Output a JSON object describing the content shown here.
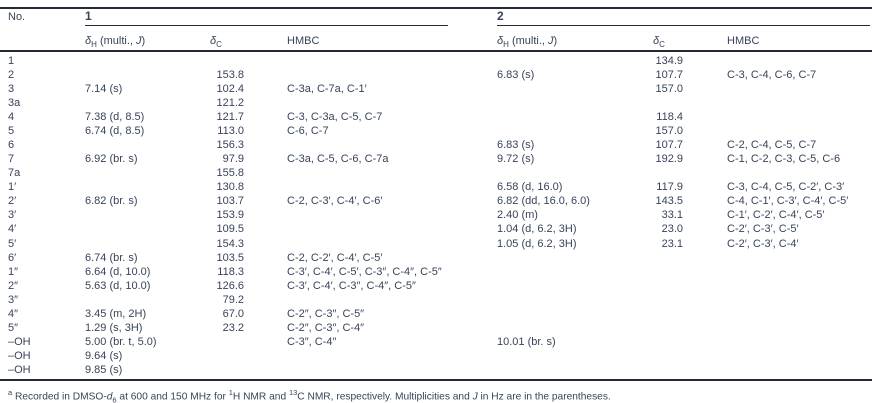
{
  "header": {
    "no_label": "No.",
    "compound1_label": "1",
    "compound2_label": "2",
    "sub": {
      "delta": "δ",
      "h_sub": "H",
      "h_rest": " (multi., ",
      "j_italic": "J",
      "h_close": ")",
      "c_sub": "C",
      "hmbc_label": "HMBC"
    }
  },
  "table": {
    "columns": [
      "No.",
      "δH (multi., J) [1]",
      "δC [1]",
      "HMBC [1]",
      "δH (multi., J) [2]",
      "δC [2]",
      "HMBC [2]"
    ],
    "rows": [
      {
        "no": "1",
        "h1": "",
        "c1": "",
        "m1": "",
        "h2": "",
        "c2": "134.9",
        "m2": ""
      },
      {
        "no": "2",
        "h1": "",
        "c1": "153.8",
        "m1": "",
        "h2": "6.83 (s)",
        "c2": "107.7",
        "m2": "C-3, C-4, C-6, C-7"
      },
      {
        "no": "3",
        "h1": "7.14 (s)",
        "c1": "102.4",
        "m1": "C-3a, C-7a, C-1′",
        "h2": "",
        "c2": "157.0",
        "m2": ""
      },
      {
        "no": "3a",
        "h1": "",
        "c1": "121.2",
        "m1": "",
        "h2": "",
        "c2": "",
        "m2": ""
      },
      {
        "no": "4",
        "h1": "7.38 (d, 8.5)",
        "c1": "121.7",
        "m1": "C-3, C-3a, C-5, C-7",
        "h2": "",
        "c2": "118.4",
        "m2": ""
      },
      {
        "no": "5",
        "h1": "6.74 (d, 8.5)",
        "c1": "113.0",
        "m1": "C-6, C-7",
        "h2": "",
        "c2": "157.0",
        "m2": ""
      },
      {
        "no": "6",
        "h1": "",
        "c1": "156.3",
        "m1": "",
        "h2": "6.83 (s)",
        "c2": "107.7",
        "m2": "C-2, C-4, C-5, C-7"
      },
      {
        "no": "7",
        "h1": "6.92 (br. s)",
        "c1": "97.9",
        "m1": "C-3a, C-5, C-6, C-7a",
        "h2": "9.72 (s)",
        "c2": "192.9",
        "m2": "C-1, C-2, C-3, C-5, C-6"
      },
      {
        "no": "7a",
        "h1": "",
        "c1": "155.8",
        "m1": "",
        "h2": "",
        "c2": "",
        "m2": ""
      },
      {
        "no": "1′",
        "h1": "",
        "c1": "130.8",
        "m1": "",
        "h2": "6.58 (d, 16.0)",
        "c2": "117.9",
        "m2": "C-3, C-4, C-5, C-2′, C-3′"
      },
      {
        "no": "2′",
        "h1": "6.82 (br. s)",
        "c1": "103.7",
        "m1": "C-2, C-3′, C-4′, C-6′",
        "h2": "6.82 (dd, 16.0, 6.0)",
        "c2": "143.5",
        "m2": "C-4, C-1′, C-3′, C-4′, C-5′"
      },
      {
        "no": "3′",
        "h1": "",
        "c1": "153.9",
        "m1": "",
        "h2": "2.40 (m)",
        "c2": "33.1",
        "m2": "C-1′, C-2′, C-4′, C-5′"
      },
      {
        "no": "4′",
        "h1": "",
        "c1": "109.5",
        "m1": "",
        "h2": "1.04 (d, 6.2, 3H)",
        "c2": "23.0",
        "m2": "C-2′, C-3′, C-5′"
      },
      {
        "no": "5′",
        "h1": "",
        "c1": "154.3",
        "m1": "",
        "h2": "1.05 (d, 6.2, 3H)",
        "c2": "23.1",
        "m2": "C-2′, C-3′, C-4′"
      },
      {
        "no": "6′",
        "h1": "6.74 (br. s)",
        "c1": "103.5",
        "m1": "C-2, C-2′, C-4′, C-5′",
        "h2": "",
        "c2": "",
        "m2": ""
      },
      {
        "no": "1″",
        "h1": "6.64 (d, 10.0)",
        "c1": "118.3",
        "m1": "C-3′, C-4′, C-5′, C-3″, C-4″, C-5″",
        "h2": "",
        "c2": "",
        "m2": ""
      },
      {
        "no": "2″",
        "h1": "5.63 (d, 10.0)",
        "c1": "126.6",
        "m1": "C-3′, C-4′, C-3″, C-4″, C-5″",
        "h2": "",
        "c2": "",
        "m2": ""
      },
      {
        "no": "3″",
        "h1": "",
        "c1": "79.2",
        "m1": "",
        "h2": "",
        "c2": "",
        "m2": ""
      },
      {
        "no": "4″",
        "h1": "3.45 (m, 2H)",
        "c1": "67.0",
        "m1": "C-2″, C-3″, C-5″",
        "h2": "",
        "c2": "",
        "m2": ""
      },
      {
        "no": "5″",
        "h1": "1.29 (s, 3H)",
        "c1": "23.2",
        "m1": "C-2″, C-3″, C-4″",
        "h2": "",
        "c2": "",
        "m2": ""
      },
      {
        "no": "–OH",
        "h1": "5.00 (br. t, 5.0)",
        "c1": "",
        "m1": "C-3″, C-4″",
        "h2": "10.01 (br. s)",
        "c2": "",
        "m2": ""
      },
      {
        "no": "–OH",
        "h1": "9.64 (s)",
        "c1": "",
        "m1": "",
        "h2": "",
        "c2": "",
        "m2": ""
      },
      {
        "no": "–OH",
        "h1": "9.85 (s)",
        "c1": "",
        "m1": "",
        "h2": "",
        "c2": "",
        "m2": ""
      }
    ]
  },
  "footnote": {
    "marker": "a",
    "part1": "Recorded in DMSO-",
    "d_italic": "d",
    "d_sub": "6",
    "part2": " at 600 and 150 MHz for ",
    "sup_1": "1",
    "part3": "H NMR and ",
    "sup_13": "13",
    "part4": "C NMR, respectively. Multiplicities and ",
    "j_italic": "J",
    "part5": " in Hz are in the parentheses."
  }
}
